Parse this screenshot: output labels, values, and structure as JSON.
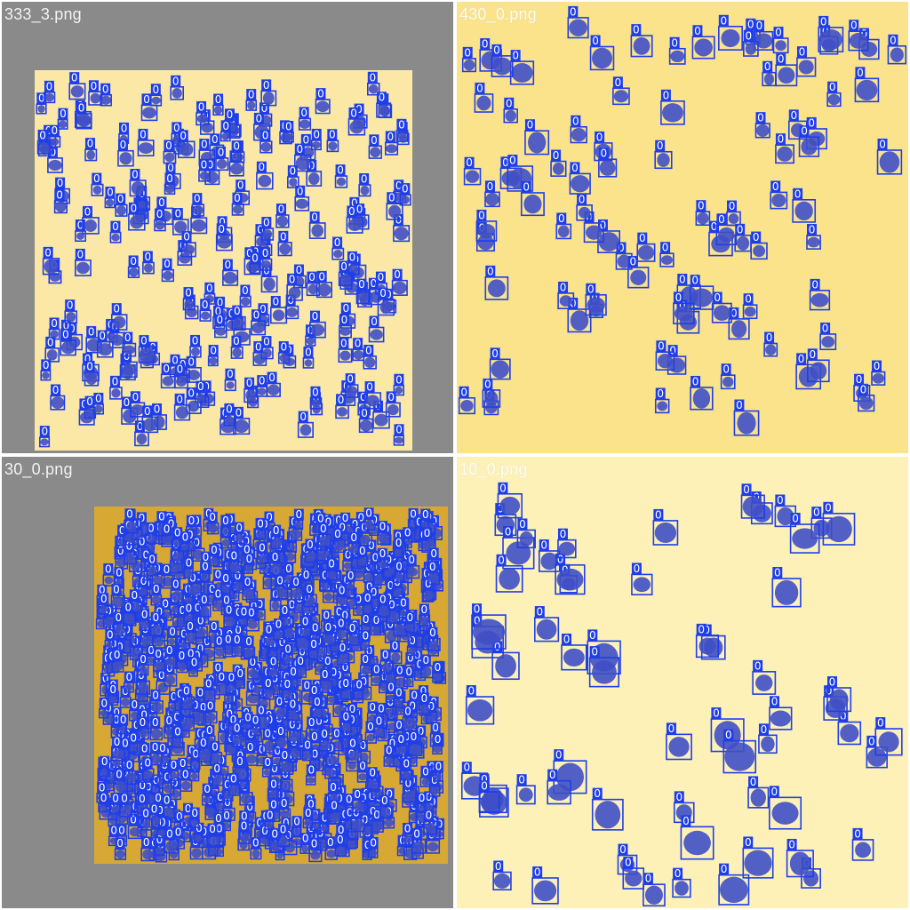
{
  "colors": {
    "box": "#1f3ee8",
    "blob": "#3f4fc7",
    "label_bg": "#1f3ee8",
    "label_text": "#ffffff",
    "canvas_gray": "#8a8a8a",
    "divider": "#ffffff"
  },
  "tiles": [
    {
      "filename": "333_3.png",
      "class_label": "0",
      "background": "#fbe8a6",
      "detection_density": "very dense"
    },
    {
      "filename": "430_0.png",
      "class_label": "0",
      "background": "#fbe38c",
      "detection_density": "sparse"
    },
    {
      "filename": "30_0.png",
      "class_label": "0",
      "background": "#d7a934",
      "detection_density": "extremely dense"
    },
    {
      "filename": "10_0.png",
      "class_label": "0",
      "background": "#fdf1b8",
      "detection_density": "sparse"
    }
  ]
}
